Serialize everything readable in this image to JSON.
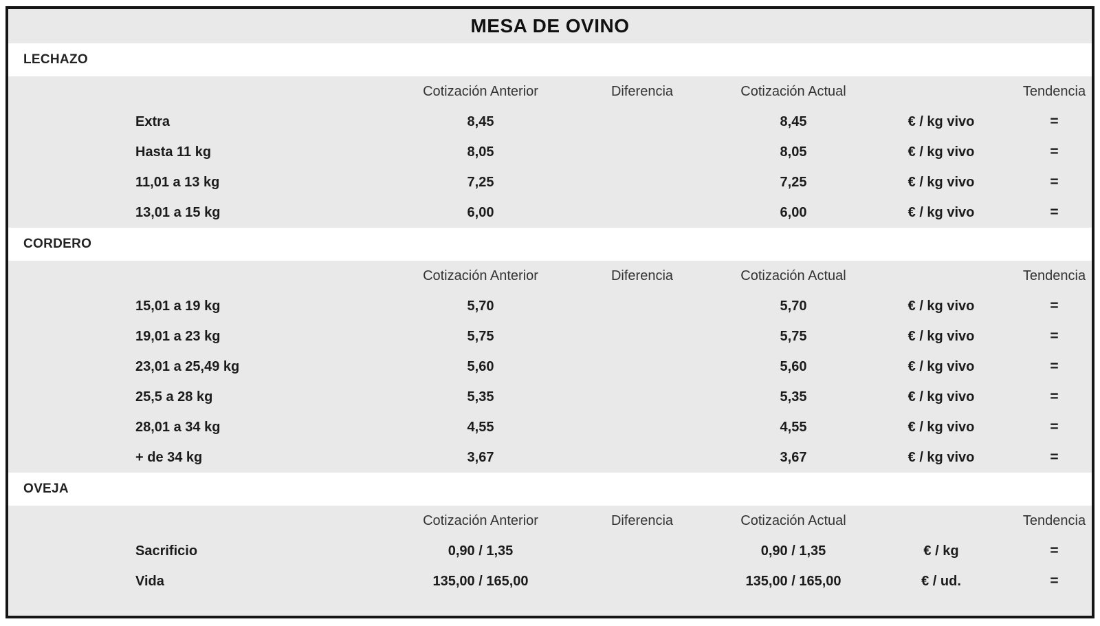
{
  "title": "MESA DE OVINO",
  "columns": {
    "anterior": "Cotización Anterior",
    "diferencia": "Diferencia",
    "actual": "Cotización Actual",
    "tendencia": "Tendencia"
  },
  "sections": [
    {
      "name": "LECHAZO",
      "rows": [
        {
          "label": "Extra",
          "anterior": "8,45",
          "diferencia": "",
          "actual": "8,45",
          "unit": "€ / kg vivo",
          "tendencia": "="
        },
        {
          "label": "Hasta 11 kg",
          "anterior": "8,05",
          "diferencia": "",
          "actual": "8,05",
          "unit": "€ / kg vivo",
          "tendencia": "="
        },
        {
          "label": "11,01 a 13 kg",
          "anterior": "7,25",
          "diferencia": "",
          "actual": "7,25",
          "unit": "€ / kg vivo",
          "tendencia": "="
        },
        {
          "label": "13,01 a 15 kg",
          "anterior": "6,00",
          "diferencia": "",
          "actual": "6,00",
          "unit": "€ / kg vivo",
          "tendencia": "="
        }
      ]
    },
    {
      "name": "CORDERO",
      "rows": [
        {
          "label": "15,01 a 19 kg",
          "anterior": "5,70",
          "diferencia": "",
          "actual": "5,70",
          "unit": "€ / kg vivo",
          "tendencia": "="
        },
        {
          "label": "19,01 a 23 kg",
          "anterior": "5,75",
          "diferencia": "",
          "actual": "5,75",
          "unit": "€ / kg vivo",
          "tendencia": "="
        },
        {
          "label": "23,01 a 25,49 kg",
          "anterior": "5,60",
          "diferencia": "",
          "actual": "5,60",
          "unit": "€ / kg vivo",
          "tendencia": "="
        },
        {
          "label": "25,5 a 28 kg",
          "anterior": "5,35",
          "diferencia": "",
          "actual": "5,35",
          "unit": "€ / kg vivo",
          "tendencia": "="
        },
        {
          "label": "28,01 a 34 kg",
          "anterior": "4,55",
          "diferencia": "",
          "actual": "4,55",
          "unit": "€ / kg vivo",
          "tendencia": "="
        },
        {
          "label": "+ de 34 kg",
          "anterior": "3,67",
          "diferencia": "",
          "actual": "3,67",
          "unit": "€ / kg vivo",
          "tendencia": "="
        }
      ]
    },
    {
      "name": "OVEJA",
      "rows": [
        {
          "label": "Sacrificio",
          "anterior": "0,90 / 1,35",
          "diferencia": "",
          "actual": "0,90 / 1,35",
          "unit": "€ / kg",
          "tendencia": "="
        },
        {
          "label": "Vida",
          "anterior": "135,00 / 165,00",
          "diferencia": "",
          "actual": "135,00 / 165,00",
          "unit": "€ / ud.",
          "tendencia": "="
        }
      ]
    }
  ],
  "colors": {
    "page_background": "#ffffff",
    "table_fill": "#e9e9e9",
    "section_header_fill": "#ffffff",
    "border": "#151515",
    "data_text": "#1b1b1b",
    "header_text": "#333333"
  }
}
